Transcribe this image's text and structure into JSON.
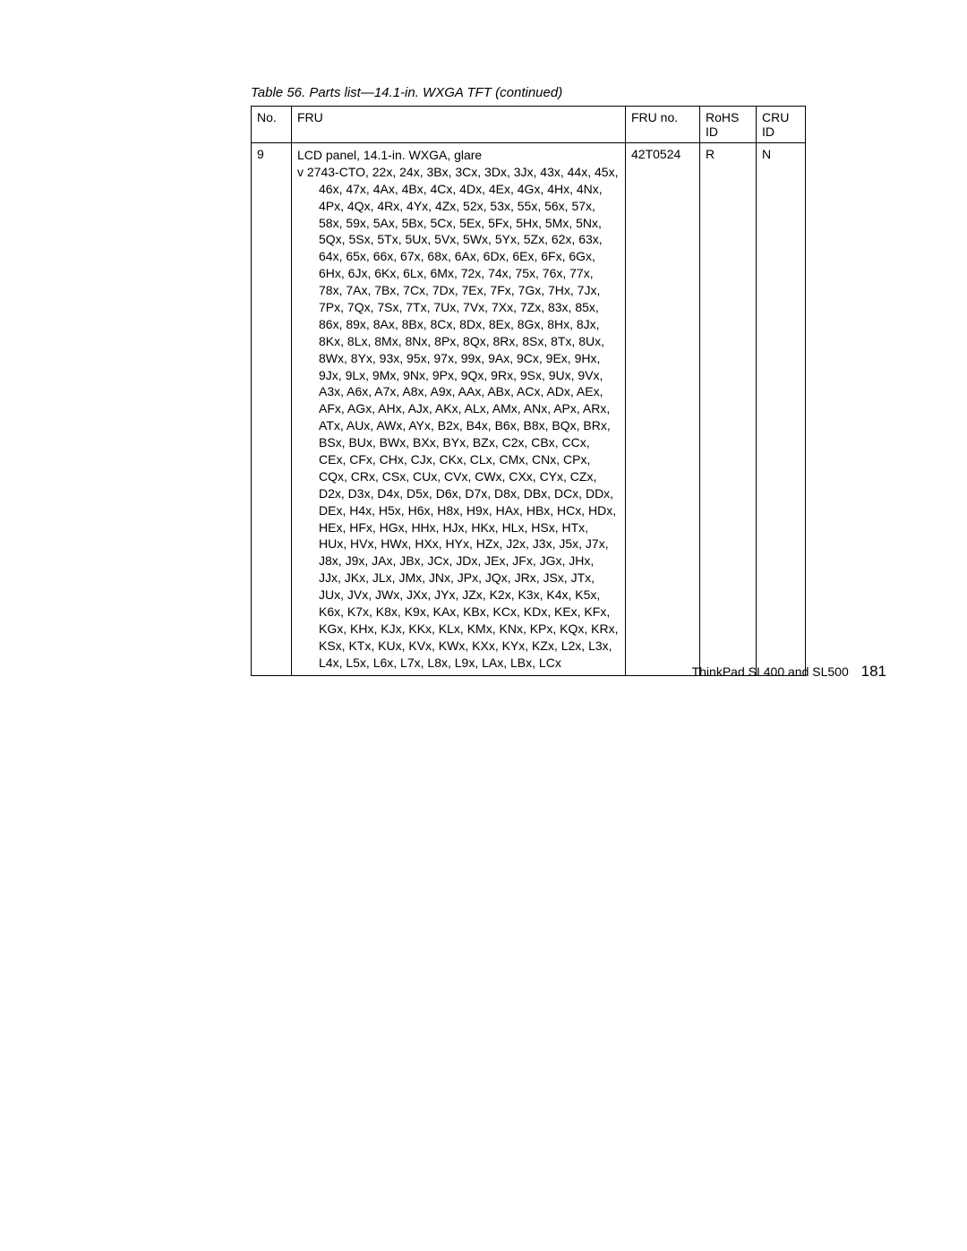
{
  "caption": "Table 56. Parts list—14.1-in. WXGA TFT  (continued)",
  "headers": {
    "no": "No.",
    "fru": "FRU",
    "fruno": "FRU no.",
    "rohs": "RoHS ID",
    "cru": "CRU ID"
  },
  "row": {
    "no": "9",
    "fru_line1": "LCD panel, 14.1-in. WXGA, glare",
    "fru_bullet_marker": "v",
    "fru_bullet_firstline": "2743-CTO, 22x, 24x, 3Bx, 3Cx, 3Dx, 3Jx, 43x, 44x, 45x,",
    "fru_cont": "46x, 47x, 4Ax, 4Bx, 4Cx, 4Dx, 4Ex, 4Gx, 4Hx, 4Nx, 4Px, 4Qx, 4Rx, 4Yx, 4Zx, 52x, 53x, 55x, 56x, 57x, 58x, 59x, 5Ax, 5Bx, 5Cx, 5Ex, 5Fx, 5Hx, 5Mx, 5Nx, 5Qx, 5Sx, 5Tx, 5Ux, 5Vx, 5Wx, 5Yx, 5Zx, 62x, 63x, 64x, 65x, 66x, 67x, 68x, 6Ax, 6Dx, 6Ex, 6Fx, 6Gx, 6Hx, 6Jx, 6Kx, 6Lx, 6Mx, 72x, 74x, 75x, 76x, 77x, 78x, 7Ax, 7Bx, 7Cx, 7Dx, 7Ex, 7Fx, 7Gx, 7Hx, 7Jx, 7Px, 7Qx, 7Sx, 7Tx, 7Ux, 7Vx, 7Xx, 7Zx, 83x, 85x, 86x, 89x, 8Ax, 8Bx, 8Cx, 8Dx, 8Ex, 8Gx, 8Hx, 8Jx, 8Kx, 8Lx, 8Mx, 8Nx, 8Px, 8Qx, 8Rx, 8Sx, 8Tx, 8Ux, 8Wx, 8Yx, 93x, 95x, 97x, 99x, 9Ax, 9Cx, 9Ex, 9Hx, 9Jx, 9Lx, 9Mx, 9Nx, 9Px, 9Qx, 9Rx, 9Sx, 9Ux, 9Vx, A3x, A6x, A7x, A8x, A9x, AAx, ABx, ACx, ADx, AEx, AFx, AGx, AHx, AJx, AKx, ALx, AMx, ANx, APx, ARx, ATx, AUx, AWx, AYx, B2x, B4x, B6x, B8x, BQx, BRx, BSx, BUx, BWx, BXx, BYx, BZx, C2x, CBx, CCx, CEx, CFx, CHx, CJx, CKx, CLx, CMx, CNx, CPx, CQx, CRx, CSx, CUx, CVx, CWx, CXx, CYx, CZx, D2x, D3x, D4x, D5x, D6x, D7x, D8x, DBx, DCx, DDx, DEx, H4x, H5x, H6x, H8x, H9x, HAx, HBx, HCx, HDx, HEx, HFx, HGx, HHx, HJx, HKx, HLx, HSx, HTx, HUx, HVx, HWx, HXx, HYx, HZx, J2x, J3x, J5x, J7x, J8x, J9x, JAx, JBx, JCx, JDx, JEx, JFx, JGx, JHx, JJx, JKx, JLx, JMx, JNx, JPx, JQx, JRx, JSx, JTx, JUx, JVx, JWx, JXx, JYx, JZx, K2x, K3x, K4x, K5x, K6x, K7x, K8x, K9x, KAx, KBx, KCx, KDx, KEx, KFx, KGx, KHx, KJx, KKx, KLx, KMx, KNx, KPx, KQx, KRx, KSx, KTx, KUx, KVx, KWx, KXx, KYx, KZx, L2x, L3x, L4x, L5x, L6x, L7x, L8x, L9x, LAx, LBx, LCx",
    "fruno": "42T0524",
    "rohs": "R",
    "cru": "N"
  },
  "footer": {
    "text": "ThinkPad SL400 and SL500",
    "page": "181"
  }
}
